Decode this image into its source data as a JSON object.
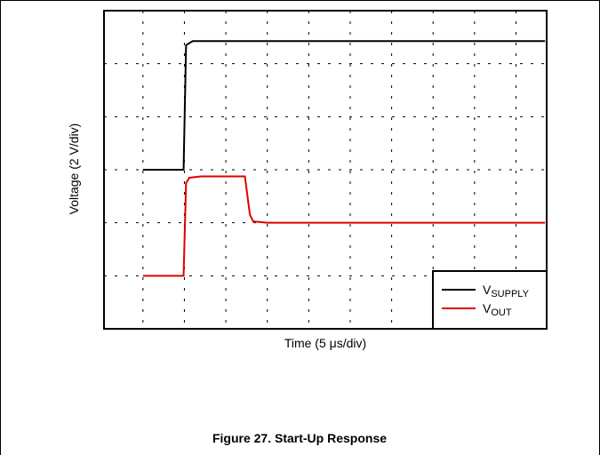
{
  "chart_data": {
    "type": "line",
    "xlabel": "Time (5 μs/div)",
    "ylabel": "Voltage (2 V/div)",
    "caption": "Figure 27. Start-Up Response",
    "xlim": [
      -4.7,
      48.7
    ],
    "xticks": [
      0,
      5,
      10,
      15,
      20,
      25,
      30,
      35,
      40,
      45
    ],
    "ylim": [
      0,
      12
    ],
    "yticks": [
      2,
      4,
      6,
      8,
      10
    ],
    "grid": true,
    "legend": "lower right",
    "series": [
      {
        "name": "VSUPPLY",
        "color": "#000000",
        "x": [
          0,
          4.9,
          5.2,
          6,
          48.5
        ],
        "values": [
          6,
          6,
          10.7,
          10.85,
          10.85
        ]
      },
      {
        "name": "VOUT",
        "color": "#e00000",
        "x": [
          0,
          4.9,
          5.2,
          5.6,
          7,
          12.3,
          12.9,
          13.3,
          15,
          48.5
        ],
        "values": [
          2,
          2,
          5.5,
          5.7,
          5.75,
          5.75,
          4.3,
          4.05,
          4.0,
          4.0
        ]
      }
    ]
  }
}
